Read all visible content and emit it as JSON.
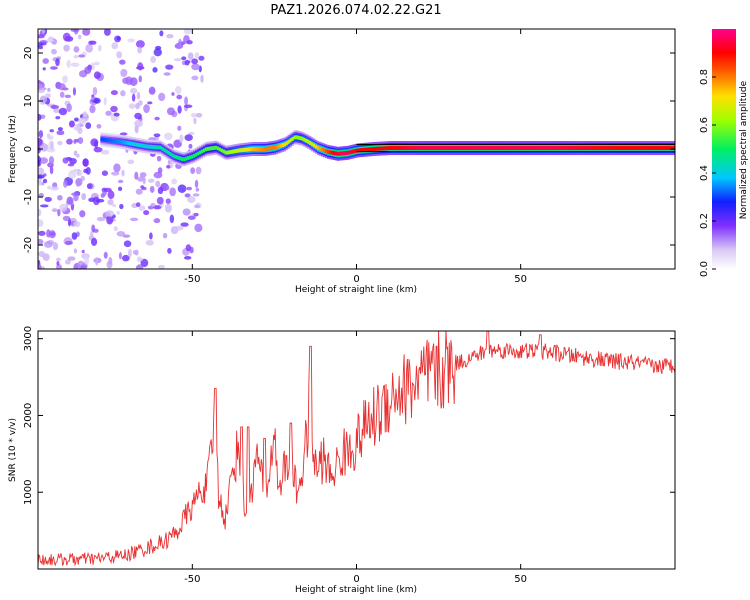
{
  "title": "PAZ1.2026.074.02.22.G21",
  "chart_data": [
    {
      "type": "heatmap",
      "xlabel": "Height of straight line (km)",
      "ylabel": "Frequency (Hz)",
      "xlim": [
        -97,
        97
      ],
      "ylim": [
        -25,
        25
      ],
      "xticks": [
        -50,
        0,
        50
      ],
      "yticks": [
        -20,
        -10,
        0,
        10,
        20
      ],
      "ytick_labels": [
        "-20",
        "-10",
        "0",
        "10",
        "20"
      ],
      "colorbar": {
        "label": "Normalized spectral amplitude",
        "range": [
          0.0,
          1.0
        ],
        "ticks": [
          0.0,
          0.2,
          0.4,
          0.6,
          0.8
        ],
        "tick_labels": [
          "0.0",
          "0.2",
          "0.4",
          "0.6",
          "0.8"
        ],
        "colormap": "rainbow (white → purple → blue → cyan → green → yellow → red → magenta)"
      },
      "ridge": {
        "description": "main spectral line (frequency vs height)",
        "x": [
          -78,
          -72,
          -68,
          -64,
          -60,
          -56,
          -53,
          -50,
          -46,
          -43,
          -40,
          -36,
          -32,
          -28,
          -25,
          -22,
          -19,
          -17,
          -15,
          -12,
          -9,
          -6,
          -3,
          0,
          5,
          10,
          20,
          40,
          60,
          80,
          97
        ],
        "y": [
          2.0,
          1.5,
          1.0,
          0.5,
          0.3,
          -1.5,
          -2.2,
          -1.5,
          0.0,
          0.3,
          -0.8,
          -0.3,
          0.0,
          0.0,
          0.3,
          1.0,
          2.5,
          2.2,
          1.5,
          0.2,
          -0.6,
          -1.0,
          -0.8,
          -0.3,
          0.0,
          0.2,
          0.2,
          0.2,
          0.2,
          0.2,
          0.2
        ],
        "amplitude": [
          0.3,
          0.35,
          0.4,
          0.4,
          0.45,
          0.45,
          0.5,
          0.5,
          0.55,
          0.55,
          0.6,
          0.65,
          0.75,
          0.8,
          0.8,
          0.7,
          0.6,
          0.6,
          0.65,
          0.75,
          0.85,
          0.95,
          0.95,
          0.9,
          0.9,
          0.9,
          0.95,
          0.95,
          0.95,
          0.9,
          0.9
        ]
      },
      "noise_region": "scattered low-amplitude purple speckle for heights below about -55 km, spanning the full frequency range"
    },
    {
      "type": "line",
      "xlabel": "Height of straight line (km)",
      "ylabel": "SNR (10 * v/v)",
      "xlim": [
        -97,
        97
      ],
      "ylim": [
        0,
        3100
      ],
      "xticks": [
        -50,
        0,
        50
      ],
      "yticks": [
        1000,
        2000,
        3000
      ],
      "color": "#e83030",
      "series": [
        {
          "x": [
            -97,
            -80,
            -70,
            -65,
            -60,
            -57,
            -54,
            -52,
            -50,
            -48,
            -46,
            -44,
            -43,
            -42,
            -40,
            -38,
            -36,
            -35,
            -34,
            -32,
            -30,
            -28,
            -26,
            -25,
            -24,
            -22,
            -20,
            -18,
            -16,
            -14,
            -13,
            -12,
            -10,
            -8,
            -6,
            -4,
            -2,
            0,
            2,
            4,
            6,
            8,
            10,
            12,
            15,
            20,
            25,
            30,
            35,
            40,
            45,
            50,
            55,
            60,
            65,
            70,
            75,
            80,
            85,
            90,
            97
          ],
          "y": [
            120,
            130,
            180,
            260,
            330,
            400,
            520,
            700,
            800,
            1000,
            1050,
            1500,
            2050,
            950,
            650,
            1200,
            1600,
            1200,
            750,
            1050,
            1500,
            900,
            1400,
            1900,
            1050,
            1300,
            1350,
            1000,
            1400,
            2200,
            1400,
            1300,
            1450,
            1200,
            1350,
            1500,
            1550,
            1650,
            1800,
            1900,
            2000,
            2100,
            2250,
            2300,
            2350,
            2450,
            2550,
            2680,
            2750,
            2850,
            2850,
            2830,
            2840,
            2820,
            2780,
            2750,
            2720,
            2700,
            2680,
            2640,
            2650
          ],
          "spikes": [
            [
              -43,
              2350
            ],
            [
              -35,
              1850
            ],
            [
              -33,
              1850
            ],
            [
              -28,
              1700
            ],
            [
              -14,
              2900
            ],
            [
              -20,
              1900
            ],
            [
              40,
              3100
            ],
            [
              56,
              3050
            ]
          ]
        }
      ]
    }
  ]
}
